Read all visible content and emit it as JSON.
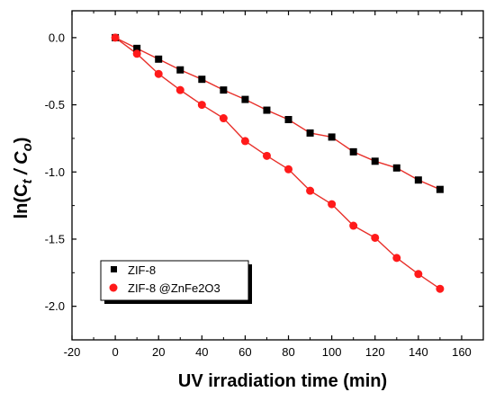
{
  "chart_data": {
    "type": "scatter",
    "xlabel": "UV irradiation time  (min)",
    "ylabel_prefix": "ln(C",
    "ylabel_sub1": "t",
    "ylabel_mid": " / C",
    "ylabel_sub2": "o",
    "ylabel_suffix": ")",
    "xlim": [
      -20,
      170
    ],
    "ylim": [
      -2.25,
      0.2
    ],
    "xticks": [
      -20,
      0,
      20,
      40,
      60,
      80,
      100,
      120,
      140,
      160
    ],
    "xtick_labels": [
      "-20",
      "0",
      "20",
      "40",
      "60",
      "80",
      "100",
      "120",
      "140",
      "160"
    ],
    "yticks": [
      0.0,
      -0.5,
      -1.0,
      -1.5,
      -2.0
    ],
    "ytick_labels": [
      "0.0",
      "-0.5",
      "-1.0",
      "-1.5",
      "-2.0"
    ],
    "legend_position": "bottom-left",
    "grid": false,
    "series": [
      {
        "name": "ZIF-8",
        "marker": "square",
        "color": "#000000",
        "fit_color": "#e8302a",
        "x": [
          0,
          10,
          20,
          30,
          40,
          50,
          60,
          70,
          80,
          90,
          100,
          110,
          120,
          130,
          140,
          150
        ],
        "y": [
          0.0,
          -0.08,
          -0.16,
          -0.24,
          -0.31,
          -0.39,
          -0.46,
          -0.54,
          -0.61,
          -0.71,
          -0.74,
          -0.85,
          -0.92,
          -0.97,
          -1.06,
          -1.13
        ],
        "fit": [
          [
            0,
            0.0
          ],
          [
            150,
            -1.13
          ]
        ]
      },
      {
        "name": "ZIF-8 @ZnFe2O3",
        "marker": "circle",
        "color": "#ff1a1a",
        "fit_color": "#e8302a",
        "x": [
          0,
          10,
          20,
          30,
          40,
          50,
          60,
          70,
          80,
          90,
          100,
          110,
          120,
          130,
          140,
          150
        ],
        "y": [
          0.0,
          -0.12,
          -0.27,
          -0.39,
          -0.5,
          -0.6,
          -0.77,
          -0.88,
          -0.98,
          -1.14,
          -1.24,
          -1.4,
          -1.49,
          -1.64,
          -1.76,
          -1.87
        ],
        "fit": [
          [
            0,
            0.0
          ],
          [
            150,
            -1.87
          ]
        ]
      }
    ]
  }
}
